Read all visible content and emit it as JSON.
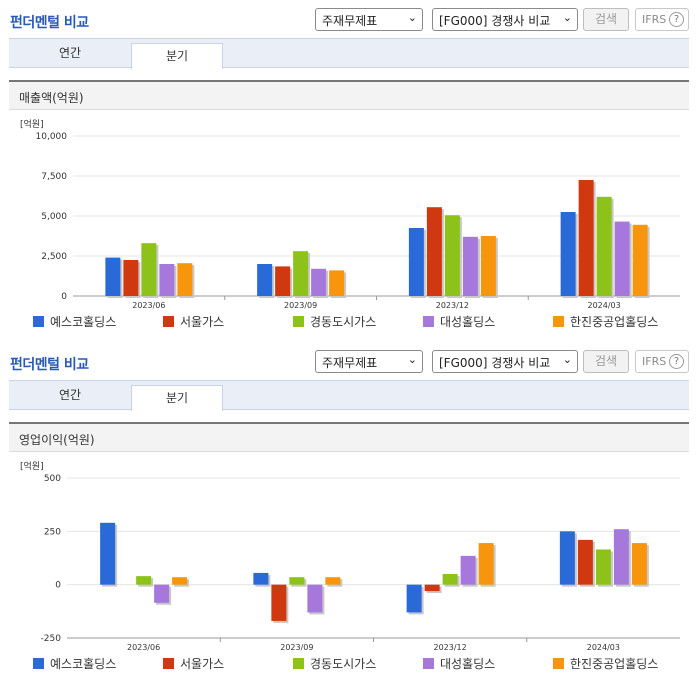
{
  "panels": [
    {
      "title": "펀더멘털 비교",
      "select_statement": "주재무제표",
      "select_compare": "[FG000] 경쟁사 비교",
      "search_label": "검색",
      "ifrs_label": "IFRS",
      "ifrs_help": "?",
      "tabs": [
        {
          "label": "연간",
          "active": false
        },
        {
          "label": "분기",
          "active": true
        }
      ],
      "section_title": "매출액(억원)",
      "unit": "[억원]"
    },
    {
      "title": "펀더멘털 비교",
      "select_statement": "주재무제표",
      "select_compare": "[FG000] 경쟁사 비교",
      "search_label": "검색",
      "ifrs_label": "IFRS",
      "ifrs_help": "?",
      "tabs": [
        {
          "label": "연간",
          "active": false
        },
        {
          "label": "분기",
          "active": true
        }
      ],
      "section_title": "영업이익(억원)",
      "unit": "[억원]"
    }
  ],
  "legend": [
    {
      "name": "예스코홀딩스",
      "color": "#2a6ad8"
    },
    {
      "name": "서울가스",
      "color": "#d0380f"
    },
    {
      "name": "경동도시가스",
      "color": "#8cc21a"
    },
    {
      "name": "대성홀딩스",
      "color": "#a678dc"
    },
    {
      "name": "한진중공업홀딩스",
      "color": "#f7960d"
    }
  ],
  "chart_data": [
    {
      "type": "bar",
      "title": "매출액(억원)",
      "ylabel": "[억원]",
      "categories": [
        "2023/06",
        "2023/09",
        "2023/12",
        "2024/03"
      ],
      "ylim": [
        0,
        10000
      ],
      "yticks": [
        0,
        2500,
        5000,
        7500,
        10000
      ],
      "ytick_labels": [
        "0",
        "2,500",
        "5,000",
        "7,500",
        "10,000"
      ],
      "grid": true,
      "legend_position": "bottom",
      "series": [
        {
          "name": "예스코홀딩스",
          "values": [
            2400,
            2000,
            4250,
            5250
          ]
        },
        {
          "name": "서울가스",
          "values": [
            2250,
            1850,
            5550,
            7250
          ]
        },
        {
          "name": "경동도시가스",
          "values": [
            3300,
            2800,
            5050,
            6200
          ]
        },
        {
          "name": "대성홀딩스",
          "values": [
            2000,
            1700,
            3700,
            4650
          ]
        },
        {
          "name": "한진중공업홀딩스",
          "values": [
            2050,
            1600,
            3750,
            4450
          ]
        }
      ]
    },
    {
      "type": "bar",
      "title": "영업이익(억원)",
      "ylabel": "[억원]",
      "categories": [
        "2023/06",
        "2023/09",
        "2023/12",
        "2024/03"
      ],
      "ylim": [
        -250,
        500
      ],
      "yticks": [
        -250,
        0,
        250,
        500
      ],
      "ytick_labels": [
        "-250",
        "0",
        "250",
        "500"
      ],
      "grid": true,
      "legend_position": "bottom",
      "series": [
        {
          "name": "예스코홀딩스",
          "values": [
            290,
            55,
            -130,
            250
          ]
        },
        {
          "name": "서울가스",
          "values": [
            0,
            -170,
            -30,
            210
          ]
        },
        {
          "name": "경동도시가스",
          "values": [
            40,
            35,
            50,
            165
          ]
        },
        {
          "name": "대성홀딩스",
          "values": [
            -85,
            -130,
            135,
            260
          ]
        },
        {
          "name": "한진중공업홀딩스",
          "values": [
            35,
            35,
            195,
            195
          ]
        }
      ]
    }
  ]
}
